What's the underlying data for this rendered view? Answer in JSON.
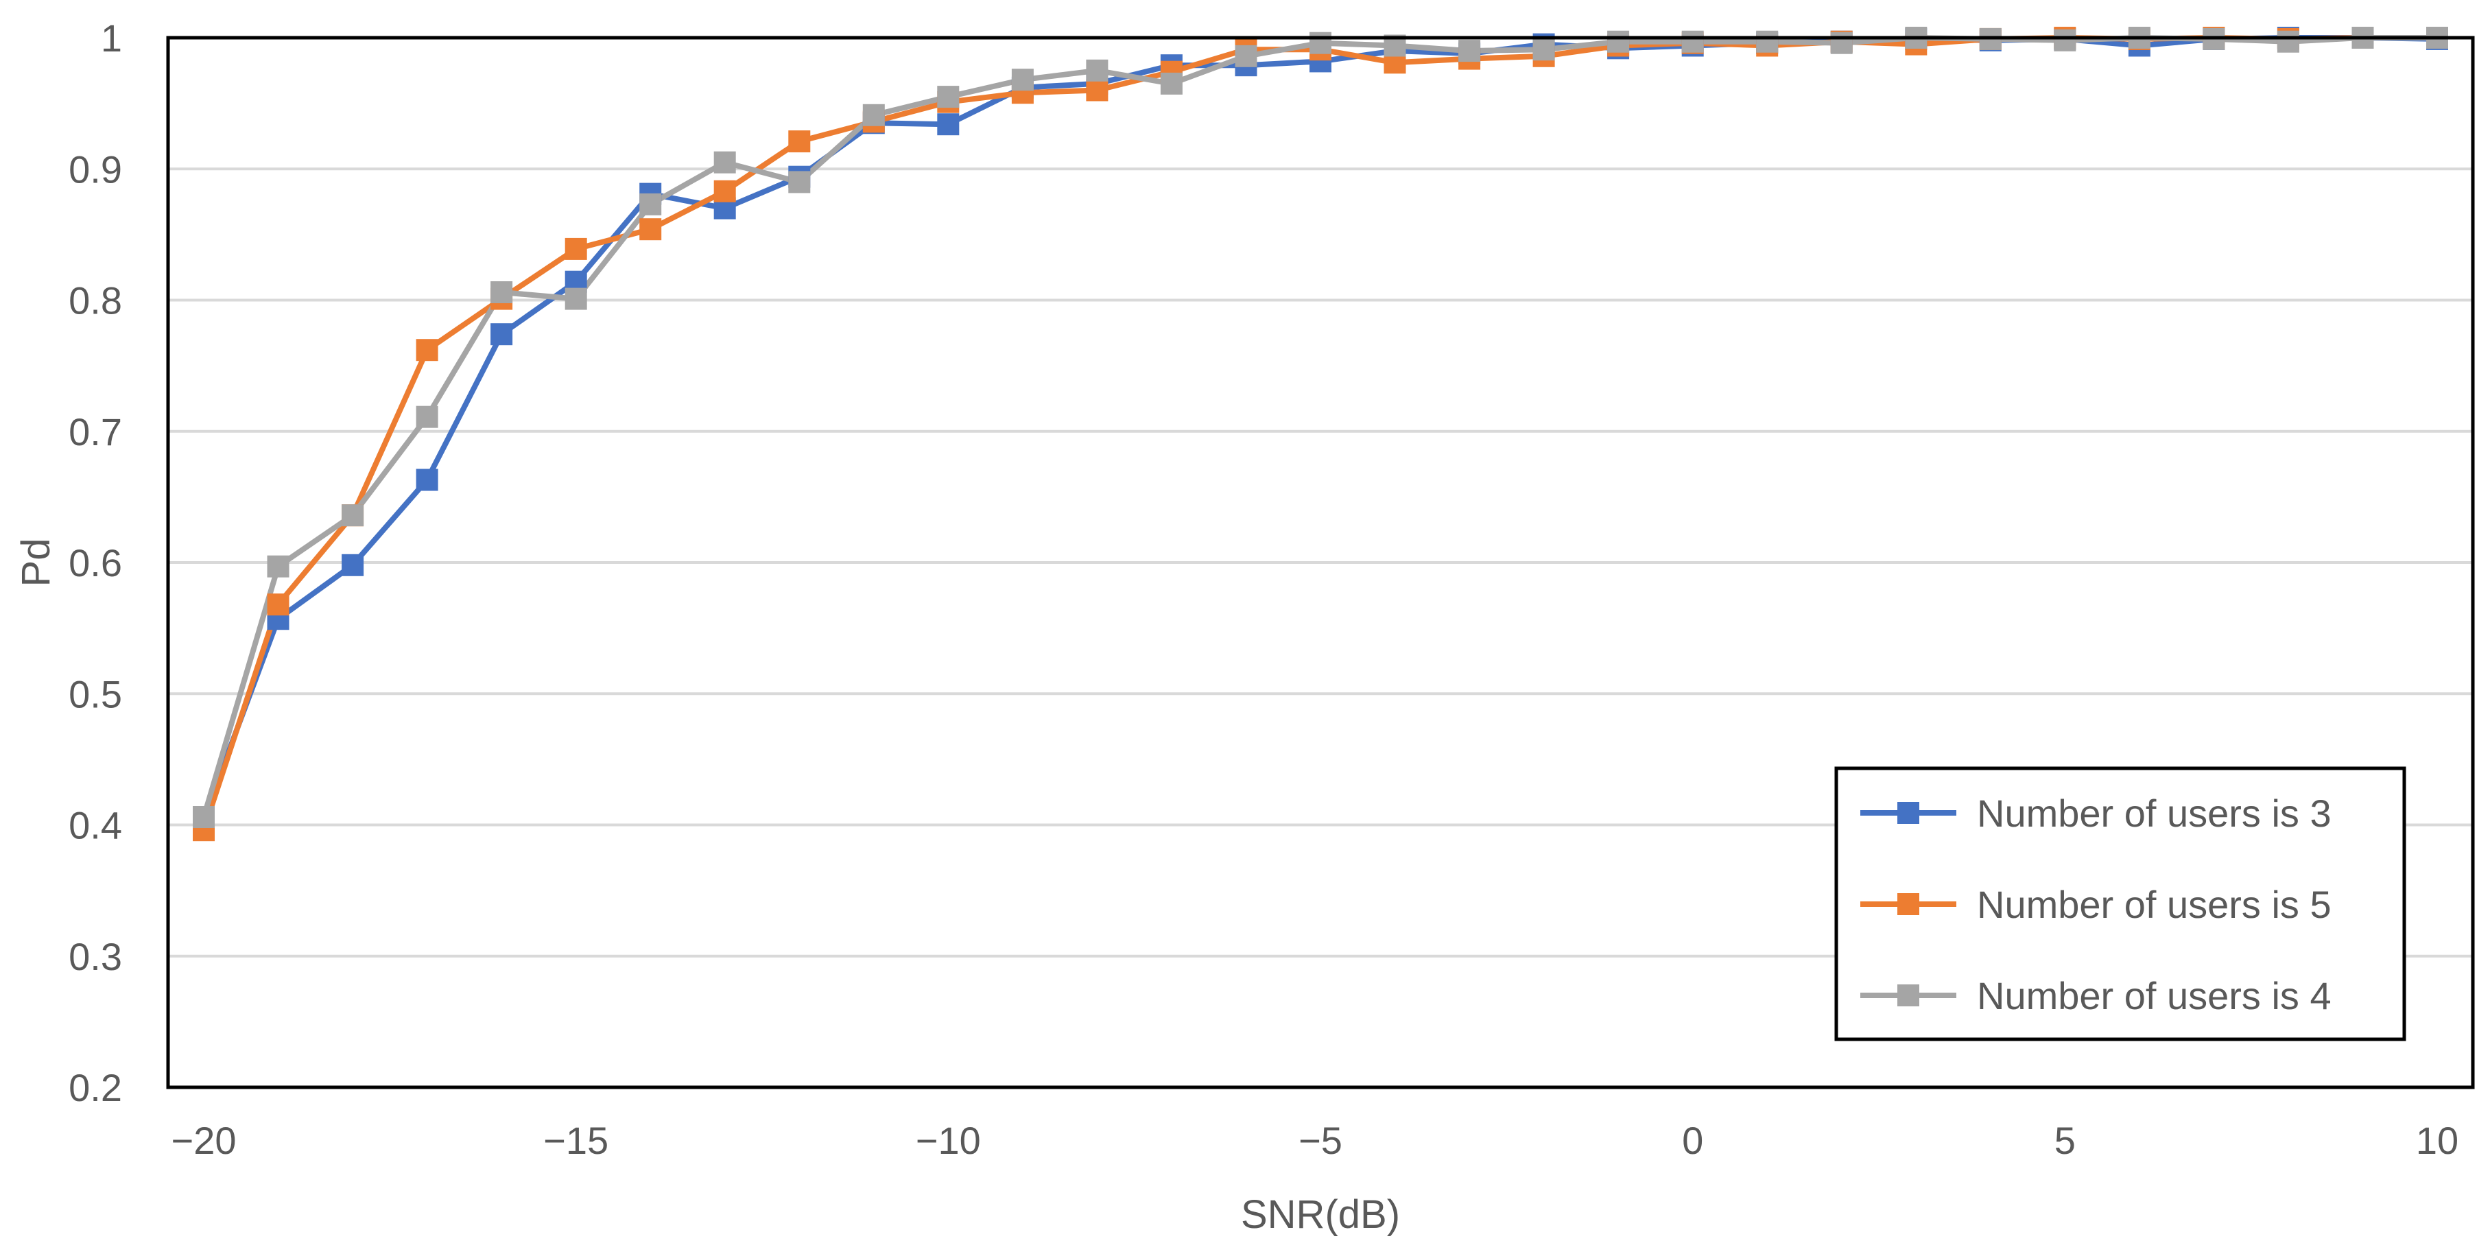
{
  "chart_data": {
    "type": "line",
    "title": "",
    "xlabel": "SNR(dB)",
    "ylabel": "Pd",
    "xlim": [
      -20,
      10
    ],
    "ylim": [
      0.2,
      1.0
    ],
    "xticks": [
      -20,
      -15,
      -10,
      -5,
      0,
      5,
      10
    ],
    "xtick_labels": [
      "−20",
      "−15",
      "−10",
      "−5",
      "0",
      "5",
      "10"
    ],
    "yticks": [
      0.2,
      0.3,
      0.4,
      0.5,
      0.6,
      0.7,
      0.8,
      0.9,
      1.0
    ],
    "ytick_labels": [
      "0.2",
      "0.3",
      "0.4",
      "0.5",
      "0.6",
      "0.7",
      "0.8",
      "0.9",
      "1"
    ],
    "grid": "horizontal",
    "legend_position": "bottom-right",
    "x": [
      -20,
      -19,
      -18,
      -17,
      -16,
      -15,
      -14,
      -13,
      -12,
      -11,
      -10,
      -9,
      -8,
      -7,
      -6,
      -5,
      -4,
      -3,
      -2,
      -1,
      0,
      1,
      2,
      3,
      4,
      5,
      6,
      7,
      8,
      9,
      10
    ],
    "series": [
      {
        "name": "Number of users is 3",
        "color": "#4472C4",
        "values": [
          0.405,
          0.557,
          0.598,
          0.663,
          0.774,
          0.814,
          0.881,
          0.87,
          0.894,
          0.935,
          0.934,
          0.962,
          0.965,
          0.979,
          0.979,
          0.982,
          0.99,
          0.988,
          0.995,
          0.992,
          0.994,
          0.996,
          0.997,
          0.999,
          0.998,
          0.999,
          0.994,
          0.999,
          1.0,
          1.0,
          0.999
        ]
      },
      {
        "name": "Number of users is 5",
        "color": "#ED7D31",
        "values": [
          0.396,
          0.568,
          0.636,
          0.762,
          0.801,
          0.839,
          0.854,
          0.883,
          0.921,
          0.936,
          0.951,
          0.958,
          0.96,
          0.974,
          0.991,
          0.991,
          0.981,
          0.984,
          0.986,
          0.994,
          0.996,
          0.994,
          0.997,
          0.995,
          0.999,
          1.0,
          0.999,
          1.0,
          0.999,
          1.0,
          1.0
        ]
      },
      {
        "name": "Number of users is 4",
        "color": "#A5A5A5",
        "values": [
          0.406,
          0.597,
          0.636,
          0.711,
          0.806,
          0.801,
          0.873,
          0.905,
          0.89,
          0.941,
          0.955,
          0.968,
          0.975,
          0.965,
          0.986,
          0.996,
          0.994,
          0.99,
          0.991,
          0.997,
          0.997,
          0.997,
          0.996,
          1.0,
          0.999,
          0.998,
          1.0,
          0.999,
          0.997,
          1.0,
          1.0
        ]
      }
    ]
  }
}
